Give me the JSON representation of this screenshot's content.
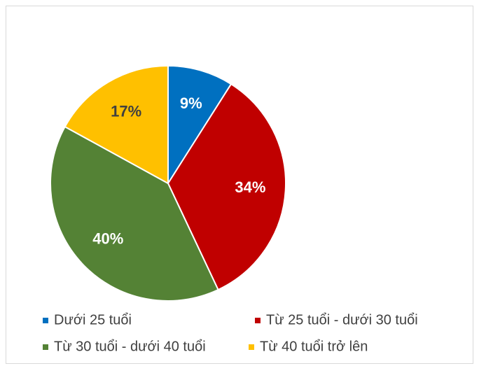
{
  "chart_data": {
    "type": "pie",
    "categories": [
      "Dưới 25 tuổi",
      "Từ 25 tuổi - dưới 30 tuổi",
      "Từ 30 tuổi - dưới 40 tuổi",
      "Từ 40 tuổi trở lên"
    ],
    "values": [
      9,
      34,
      40,
      17
    ],
    "value_labels": [
      "9%",
      "34%",
      "40%",
      "17%"
    ],
    "colors": [
      "#0070c0",
      "#c00000",
      "#548235",
      "#ffc000"
    ],
    "label_colors": [
      "#ffffff",
      "#ffffff",
      "#ffffff",
      "#404040"
    ],
    "legend": "bottom"
  }
}
